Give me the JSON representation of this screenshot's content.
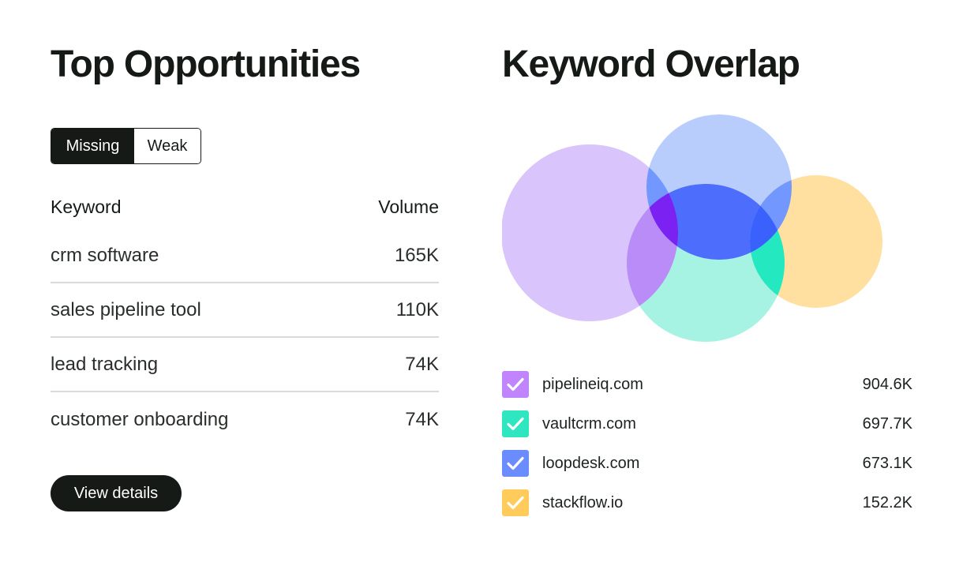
{
  "left": {
    "title": "Top Opportunities",
    "tabs": [
      {
        "label": "Missing",
        "active": true
      },
      {
        "label": "Weak",
        "active": false
      }
    ],
    "table": {
      "columns": [
        "Keyword",
        "Volume"
      ],
      "rows": [
        {
          "keyword": "crm software",
          "volume": "165K"
        },
        {
          "keyword": "sales pipeline tool",
          "volume": "110K"
        },
        {
          "keyword": "lead tracking",
          "volume": "74K"
        },
        {
          "keyword": "customer onboarding",
          "volume": "74K"
        }
      ]
    },
    "button_label": "View details"
  },
  "right": {
    "title": "Keyword Overlap",
    "legend": [
      {
        "domain": "pipelineiq.com",
        "count": "904.6K",
        "color": "#c084fc",
        "checked": true
      },
      {
        "domain": "vaultcrm.com",
        "count": "697.7K",
        "color": "#2ee6c0",
        "checked": true
      },
      {
        "domain": "loopdesk.com",
        "count": "673.1K",
        "color": "#6b8cff",
        "checked": true
      },
      {
        "domain": "stackflow.io",
        "count": "152.2K",
        "color": "#ffcc5c",
        "checked": true
      }
    ],
    "venn_colors": {
      "pipelineiq": "#d9c4fb",
      "vaultcrm": "#a7f3e3",
      "loopdesk": "#b9cdfd",
      "stackflow": "#ffe0a0",
      "overlap_purple": "#b98cf8",
      "overlap_blue": "#4d6dfd",
      "overlap_deep": "#7b21f2",
      "overlap_teal": "#23e8c0",
      "overlap_mid_blue": "#7297fe",
      "overlap_stack_blue": "#3a61fb"
    }
  }
}
